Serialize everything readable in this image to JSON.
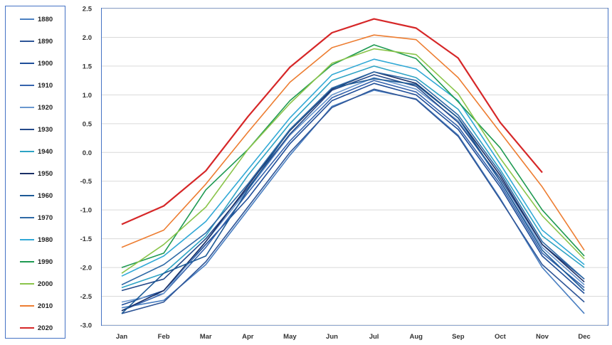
{
  "chart_data": {
    "type": "line",
    "title": "",
    "xlabel": "",
    "ylabel": "",
    "ylim": [
      -3.0,
      2.5
    ],
    "yticks": [
      "2.5",
      "2.0",
      "1.5",
      "1.0",
      "0.5",
      "0.0",
      "-0.5",
      "-1.0",
      "-1.5",
      "-2.0",
      "-2.5",
      "-3.0"
    ],
    "ytick_values": [
      2.5,
      2.0,
      1.5,
      1.0,
      0.5,
      0.0,
      -0.5,
      -1.0,
      -1.5,
      -2.0,
      -2.5,
      -3.0
    ],
    "categories": [
      "Jan",
      "Feb",
      "Mar",
      "Apr",
      "May",
      "Jun",
      "Jul",
      "Aug",
      "Sep",
      "Oct",
      "Nov",
      "Dec"
    ],
    "grid": true,
    "legend_position": "left",
    "series": [
      {
        "name": "1880",
        "color": "#4a7fc1",
        "values": [
          -2.7,
          -2.57,
          -1.95,
          -1.0,
          -0.05,
          0.8,
          1.08,
          0.93,
          0.3,
          -0.8,
          -2.0,
          -2.8
        ]
      },
      {
        "name": "1890",
        "color": "#2e5597",
        "values": [
          -2.8,
          -2.6,
          -1.9,
          -0.95,
          0.0,
          0.78,
          1.1,
          0.92,
          0.28,
          -0.82,
          -1.95,
          -2.6
        ]
      },
      {
        "name": "1900",
        "color": "#1f4e99",
        "values": [
          -2.65,
          -2.4,
          -1.6,
          -0.8,
          0.15,
          0.9,
          1.2,
          1.0,
          0.4,
          -0.6,
          -1.8,
          -2.45
        ]
      },
      {
        "name": "1910",
        "color": "#3563ad",
        "values": [
          -2.75,
          -2.45,
          -1.65,
          -0.7,
          0.2,
          0.95,
          1.25,
          1.05,
          0.45,
          -0.55,
          -1.75,
          -2.35
        ]
      },
      {
        "name": "1920",
        "color": "#6a97cf",
        "values": [
          -2.6,
          -2.45,
          -1.55,
          -0.65,
          0.3,
          1.0,
          1.3,
          1.1,
          0.55,
          -0.5,
          -1.65,
          -2.3
        ]
      },
      {
        "name": "1930",
        "color": "#254a8a",
        "values": [
          -2.4,
          -2.2,
          -1.5,
          -0.62,
          0.32,
          1.08,
          1.35,
          1.15,
          0.52,
          -0.45,
          -1.6,
          -2.2
        ]
      },
      {
        "name": "1940",
        "color": "#2da3c4",
        "values": [
          -2.35,
          -2.1,
          -1.45,
          -0.4,
          0.5,
          1.25,
          1.5,
          1.3,
          0.75,
          -0.3,
          -1.45,
          -2.0
        ]
      },
      {
        "name": "1950",
        "color": "#1a2f66",
        "values": [
          -2.75,
          -2.4,
          -1.55,
          -0.58,
          0.38,
          1.1,
          1.4,
          1.2,
          0.6,
          -0.4,
          -1.6,
          -2.25
        ]
      },
      {
        "name": "1960",
        "color": "#1d5a96",
        "values": [
          -2.8,
          -2.1,
          -1.8,
          -0.65,
          0.4,
          1.12,
          1.28,
          1.18,
          0.6,
          -0.5,
          -1.7,
          -2.4
        ]
      },
      {
        "name": "1970",
        "color": "#2f6aa6",
        "values": [
          -2.3,
          -1.95,
          -1.4,
          -0.55,
          0.4,
          1.12,
          1.4,
          1.25,
          0.65,
          -0.35,
          -1.55,
          -2.2
        ]
      },
      {
        "name": "1980",
        "color": "#31a9d6",
        "values": [
          -2.15,
          -1.8,
          -1.2,
          -0.3,
          0.6,
          1.35,
          1.62,
          1.45,
          0.9,
          -0.2,
          -1.35,
          -1.95
        ]
      },
      {
        "name": "1990",
        "color": "#1f9a52",
        "values": [
          -2.0,
          -1.75,
          -0.65,
          0.05,
          0.9,
          1.52,
          1.87,
          1.63,
          0.88,
          0.08,
          -1.0,
          -1.8
        ]
      },
      {
        "name": "2000",
        "color": "#8ac44a",
        "values": [
          -2.1,
          -1.6,
          -0.95,
          0.05,
          0.85,
          1.55,
          1.8,
          1.7,
          1.02,
          -0.1,
          -1.1,
          -1.85
        ]
      },
      {
        "name": "2010",
        "color": "#ed7d31",
        "values": [
          -1.65,
          -1.35,
          -0.55,
          0.35,
          1.22,
          1.82,
          2.04,
          1.96,
          1.3,
          0.35,
          -0.6,
          -1.7
        ]
      },
      {
        "name": "2020",
        "color": "#d62728",
        "values": [
          -1.25,
          -0.93,
          -0.32,
          0.62,
          1.48,
          2.08,
          2.32,
          2.16,
          1.64,
          0.52,
          -0.35,
          null
        ]
      }
    ]
  }
}
